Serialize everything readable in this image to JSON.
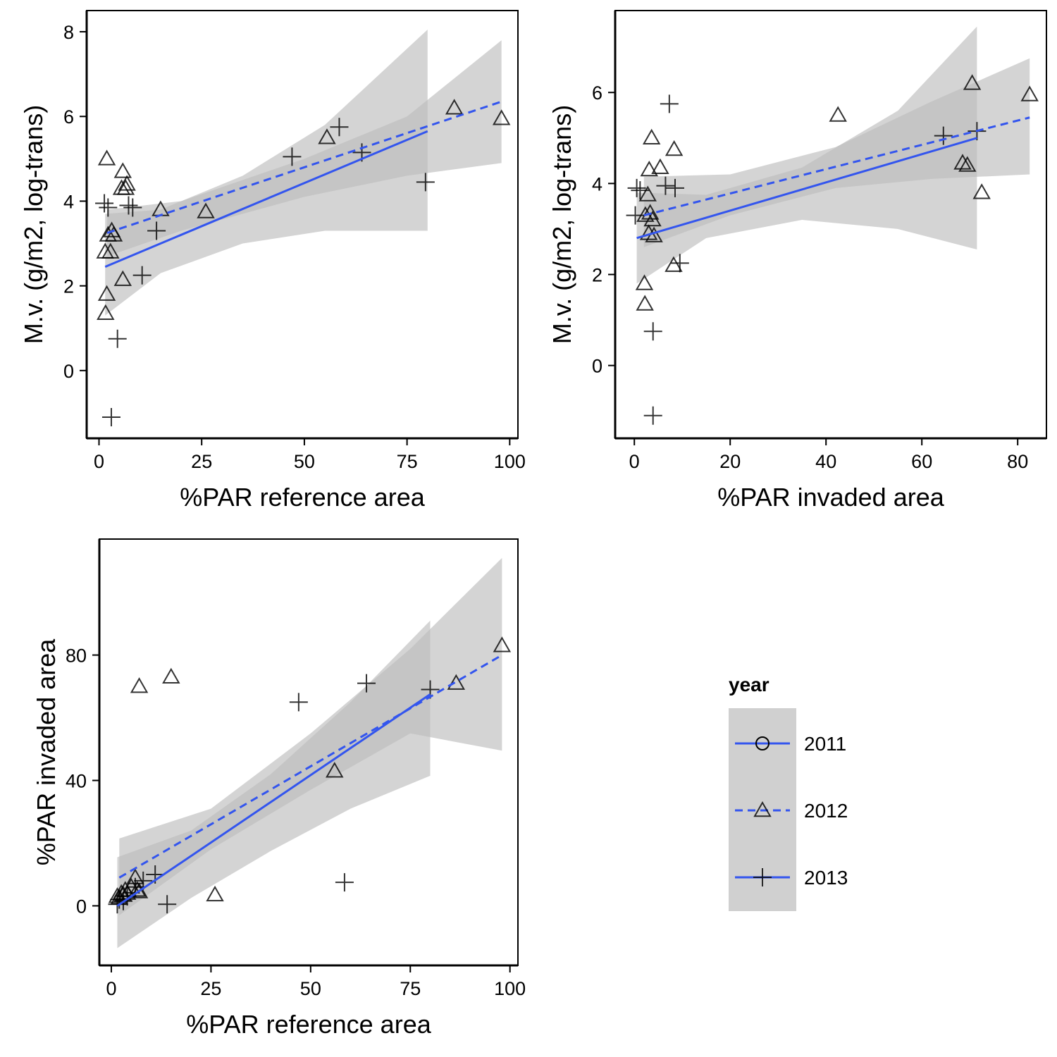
{
  "legend": {
    "title": "year",
    "items": [
      {
        "label": "2011",
        "marker": "circle",
        "line": "solid"
      },
      {
        "label": "2012",
        "marker": "triangle",
        "line": "dashed"
      },
      {
        "label": "2013",
        "marker": "plus",
        "line": "solid"
      }
    ],
    "placement": "bottom-right"
  },
  "colors": {
    "fit_line": "#3355ee",
    "ribbon": "#bdbdbd",
    "marker": "#000000",
    "legend_key_bg": "#d0d0d0"
  },
  "chart_data": [
    {
      "type": "scatter",
      "xlabel": "%PAR reference area",
      "ylabel": "M.v. (g/m2, log-trans)",
      "xlim": [
        -3,
        102
      ],
      "ylim": [
        -1.6,
        8.5
      ],
      "xticks": [
        0,
        25,
        50,
        75,
        100
      ],
      "yticks": [
        0,
        2,
        4,
        6,
        8
      ],
      "grid": false,
      "series": [
        {
          "name": "2012",
          "marker": "triangle",
          "points": [
            [
              1.9,
              5.0
            ],
            [
              5.8,
              4.7
            ],
            [
              6.8,
              4.4
            ],
            [
              5.5,
              4.3
            ],
            [
              6.5,
              4.3
            ],
            [
              3.1,
              3.3
            ],
            [
              3.6,
              3.2
            ],
            [
              2.2,
              3.2
            ],
            [
              1.5,
              2.8
            ],
            [
              2.8,
              2.8
            ],
            [
              15,
              3.8
            ],
            [
              26,
              3.75
            ],
            [
              5.8,
              2.15
            ],
            [
              1.9,
              1.8
            ],
            [
              1.6,
              1.35
            ],
            [
              55.5,
              5.5
            ],
            [
              86.5,
              6.2
            ],
            [
              98,
              5.95
            ]
          ]
        },
        {
          "name": "2013",
          "marker": "plus",
          "points": [
            [
              1.3,
              3.95
            ],
            [
              2.2,
              3.85
            ],
            [
              7.2,
              3.9
            ],
            [
              8.2,
              3.85
            ],
            [
              14,
              3.3
            ],
            [
              10.5,
              2.25
            ],
            [
              4.5,
              0.75
            ],
            [
              3.0,
              -1.1
            ],
            [
              47,
              5.05
            ],
            [
              58.5,
              5.75
            ],
            [
              64,
              5.15
            ],
            [
              79.5,
              4.45
            ]
          ]
        }
      ],
      "fits": [
        {
          "name": "2012",
          "line": "dashed",
          "x": [
            2,
            98
          ],
          "y": [
            3.25,
            6.35
          ],
          "ribbon": {
            "x": [
              2,
              20,
              50,
              75,
              98
            ],
            "lower": [
              2.7,
              3.3,
              4.1,
              4.6,
              4.9
            ],
            "upper": [
              3.8,
              4.0,
              5.0,
              6.0,
              7.8
            ]
          }
        },
        {
          "name": "2013",
          "line": "solid",
          "x": [
            1.5,
            80
          ],
          "y": [
            2.45,
            5.65
          ],
          "ribbon": {
            "x": [
              1.5,
              15,
              35,
              55,
              80
            ],
            "lower": [
              1.3,
              2.3,
              3.0,
              3.3,
              3.3
            ],
            "upper": [
              3.7,
              3.8,
              4.6,
              5.8,
              8.05
            ]
          }
        }
      ]
    },
    {
      "type": "scatter",
      "xlabel": "%PAR invaded area",
      "ylabel": "M.v. (g/m2, log-trans)",
      "xlim": [
        -4,
        86
      ],
      "ylim": [
        -1.6,
        7.8
      ],
      "xticks": [
        0,
        20,
        40,
        60,
        80
      ],
      "yticks": [
        0,
        2,
        4,
        6
      ],
      "grid": false,
      "series": [
        {
          "name": "2012",
          "marker": "triangle",
          "points": [
            [
              3.6,
              5.0
            ],
            [
              8.3,
              4.75
            ],
            [
              5.4,
              4.35
            ],
            [
              3.1,
              4.3
            ],
            [
              2.8,
              3.75
            ],
            [
              3.3,
              3.35
            ],
            [
              2.3,
              3.3
            ],
            [
              3.8,
              3.2
            ],
            [
              3.0,
              2.9
            ],
            [
              4.1,
              2.85
            ],
            [
              8.2,
              2.2
            ],
            [
              2.1,
              1.8
            ],
            [
              2.2,
              1.35
            ],
            [
              42.5,
              5.5
            ],
            [
              70.5,
              6.2
            ],
            [
              82.5,
              5.95
            ],
            [
              68.5,
              4.45
            ],
            [
              69.5,
              4.4
            ],
            [
              72.5,
              3.8
            ]
          ]
        },
        {
          "name": "2013",
          "marker": "plus",
          "points": [
            [
              0.5,
              3.9
            ],
            [
              1.2,
              3.85
            ],
            [
              6.5,
              3.95
            ],
            [
              8.5,
              3.9
            ],
            [
              0.2,
              3.3
            ],
            [
              9.5,
              2.25
            ],
            [
              3.9,
              0.75
            ],
            [
              3.9,
              -1.1
            ],
            [
              7.3,
              5.75
            ],
            [
              64.5,
              5.05
            ],
            [
              71.5,
              5.15
            ]
          ]
        }
      ],
      "fits": [
        {
          "name": "2012",
          "line": "dashed",
          "x": [
            2,
            82.5
          ],
          "y": [
            3.3,
            5.45
          ],
          "ribbon": {
            "x": [
              2,
              20,
              42,
              62,
              82.5
            ],
            "lower": [
              2.6,
              3.3,
              3.9,
              4.1,
              4.2
            ],
            "upper": [
              4.15,
              4.2,
              4.8,
              5.8,
              6.75
            ]
          }
        },
        {
          "name": "2013",
          "line": "solid",
          "x": [
            0.5,
            71.5
          ],
          "y": [
            2.8,
            5.0
          ],
          "ribbon": {
            "x": [
              0.5,
              15,
              35,
              55,
              71.5
            ],
            "lower": [
              1.8,
              2.8,
              3.2,
              3.0,
              2.55
            ],
            "upper": [
              3.8,
              3.75,
              4.35,
              5.6,
              7.45
            ]
          }
        }
      ]
    },
    {
      "type": "scatter",
      "xlabel": "%PAR reference area",
      "ylabel": "%PAR invaded area",
      "xlim": [
        -3,
        102
      ],
      "ylim": [
        -19,
        117
      ],
      "xticks": [
        0,
        25,
        50,
        75,
        100
      ],
      "yticks": [
        0,
        40,
        80
      ],
      "grid": false,
      "series": [
        {
          "name": "2012",
          "marker": "triangle",
          "points": [
            [
              7,
              70
            ],
            [
              15,
              73
            ],
            [
              56,
              43
            ],
            [
              86.5,
              71
            ],
            [
              98,
              83
            ],
            [
              26,
              3.5
            ],
            [
              1.5,
              3
            ],
            [
              2,
              2.5
            ],
            [
              2.5,
              4
            ],
            [
              3,
              3.5
            ],
            [
              3.5,
              5
            ],
            [
              4,
              4
            ],
            [
              5,
              6
            ],
            [
              6,
              9
            ],
            [
              6.5,
              5
            ],
            [
              7,
              4.5
            ]
          ]
        },
        {
          "name": "2013",
          "marker": "plus",
          "points": [
            [
              47,
              65
            ],
            [
              64,
              71
            ],
            [
              80,
              69
            ],
            [
              58.5,
              7.5
            ],
            [
              14,
              0.5
            ],
            [
              1.5,
              0.5
            ],
            [
              2,
              2
            ],
            [
              3,
              1.5
            ],
            [
              4,
              3
            ],
            [
              6,
              6
            ],
            [
              8,
              8
            ],
            [
              11,
              10
            ]
          ]
        }
      ],
      "fits": [
        {
          "name": "2012",
          "line": "dashed",
          "x": [
            2,
            98
          ],
          "y": [
            9,
            80
          ],
          "ribbon": {
            "x": [
              2,
              25,
              50,
              75,
              98
            ],
            "lower": [
              -3,
              18,
              37,
              55,
              49.5
            ],
            "upper": [
              21.5,
              31,
              55,
              82,
              111
            ]
          }
        },
        {
          "name": "2013",
          "line": "solid",
          "x": [
            1.5,
            80
          ],
          "y": [
            0,
            67.5
          ],
          "ribbon": {
            "x": [
              1.5,
              20,
              40,
              60,
              80
            ],
            "lower": [
              -13.5,
              2.5,
              17.5,
              31,
              41.5
            ],
            "upper": [
              15.5,
              24,
              42,
              65,
              91
            ]
          }
        }
      ]
    }
  ]
}
